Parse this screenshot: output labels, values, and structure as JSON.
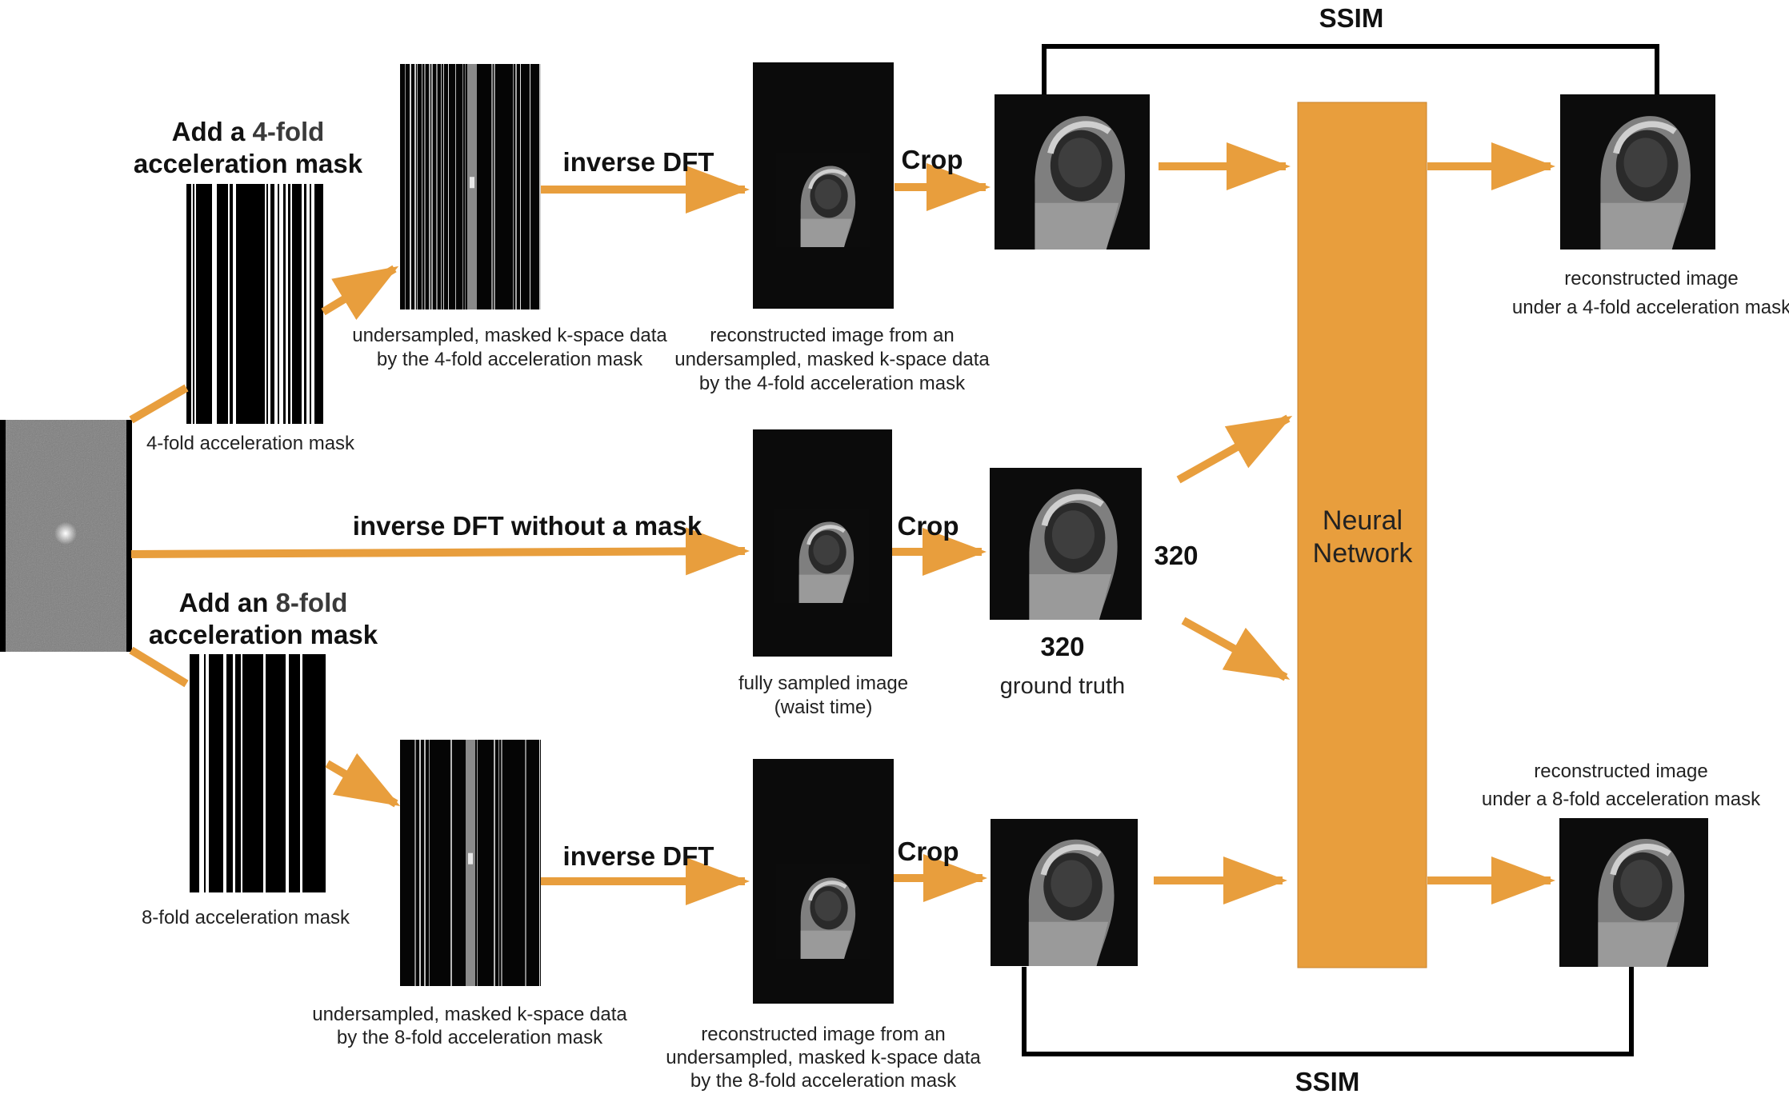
{
  "colors": {
    "arrow": "#E89E3D",
    "nn": "#E89E3D",
    "panel": "#0b0b0b",
    "bracket": "#000000"
  },
  "top": {
    "mask_title": {
      "pre": "Add a ",
      "mid": "4-fold",
      "post": "acceleration mask"
    },
    "mask_caption": "4-fold acceleration mask",
    "kspace_caption": [
      "undersampled, masked k-space data",
      "by the 4-fold acceleration mask"
    ],
    "dft_label": "inverse DFT",
    "recon_caption": [
      "reconstructed image from an",
      "undersampled, masked k-space data",
      "by the 4-fold acceleration mask"
    ],
    "crop_label": "Crop",
    "output_caption": [
      "reconstructed image",
      "under a 4-fold acceleration mask"
    ],
    "ssim_label": "SSIM"
  },
  "middle": {
    "dft_label": "inverse DFT without a mask",
    "full_caption": [
      "fully sampled image",
      "(waist time)"
    ],
    "crop_label": "Crop",
    "size_right": "320",
    "size_bottom": "320",
    "gt_caption": "ground truth"
  },
  "bottom": {
    "mask_title": {
      "pre": "Add an ",
      "mid": "8-fold",
      "post": "acceleration mask"
    },
    "mask_caption": "8-fold acceleration mask",
    "kspace_caption": [
      "undersampled, masked k-space data",
      "by the 8-fold acceleration mask"
    ],
    "dft_label": "inverse DFT",
    "recon_caption": [
      "reconstructed image from an",
      "undersampled, masked k-space data",
      "by the 8-fold acceleration mask"
    ],
    "crop_label": "Crop",
    "output_caption": [
      "reconstructed image",
      "under a 8-fold acceleration mask"
    ],
    "ssim_label": "SSIM"
  },
  "nn": {
    "line1": "Neural",
    "line2": "Network"
  }
}
